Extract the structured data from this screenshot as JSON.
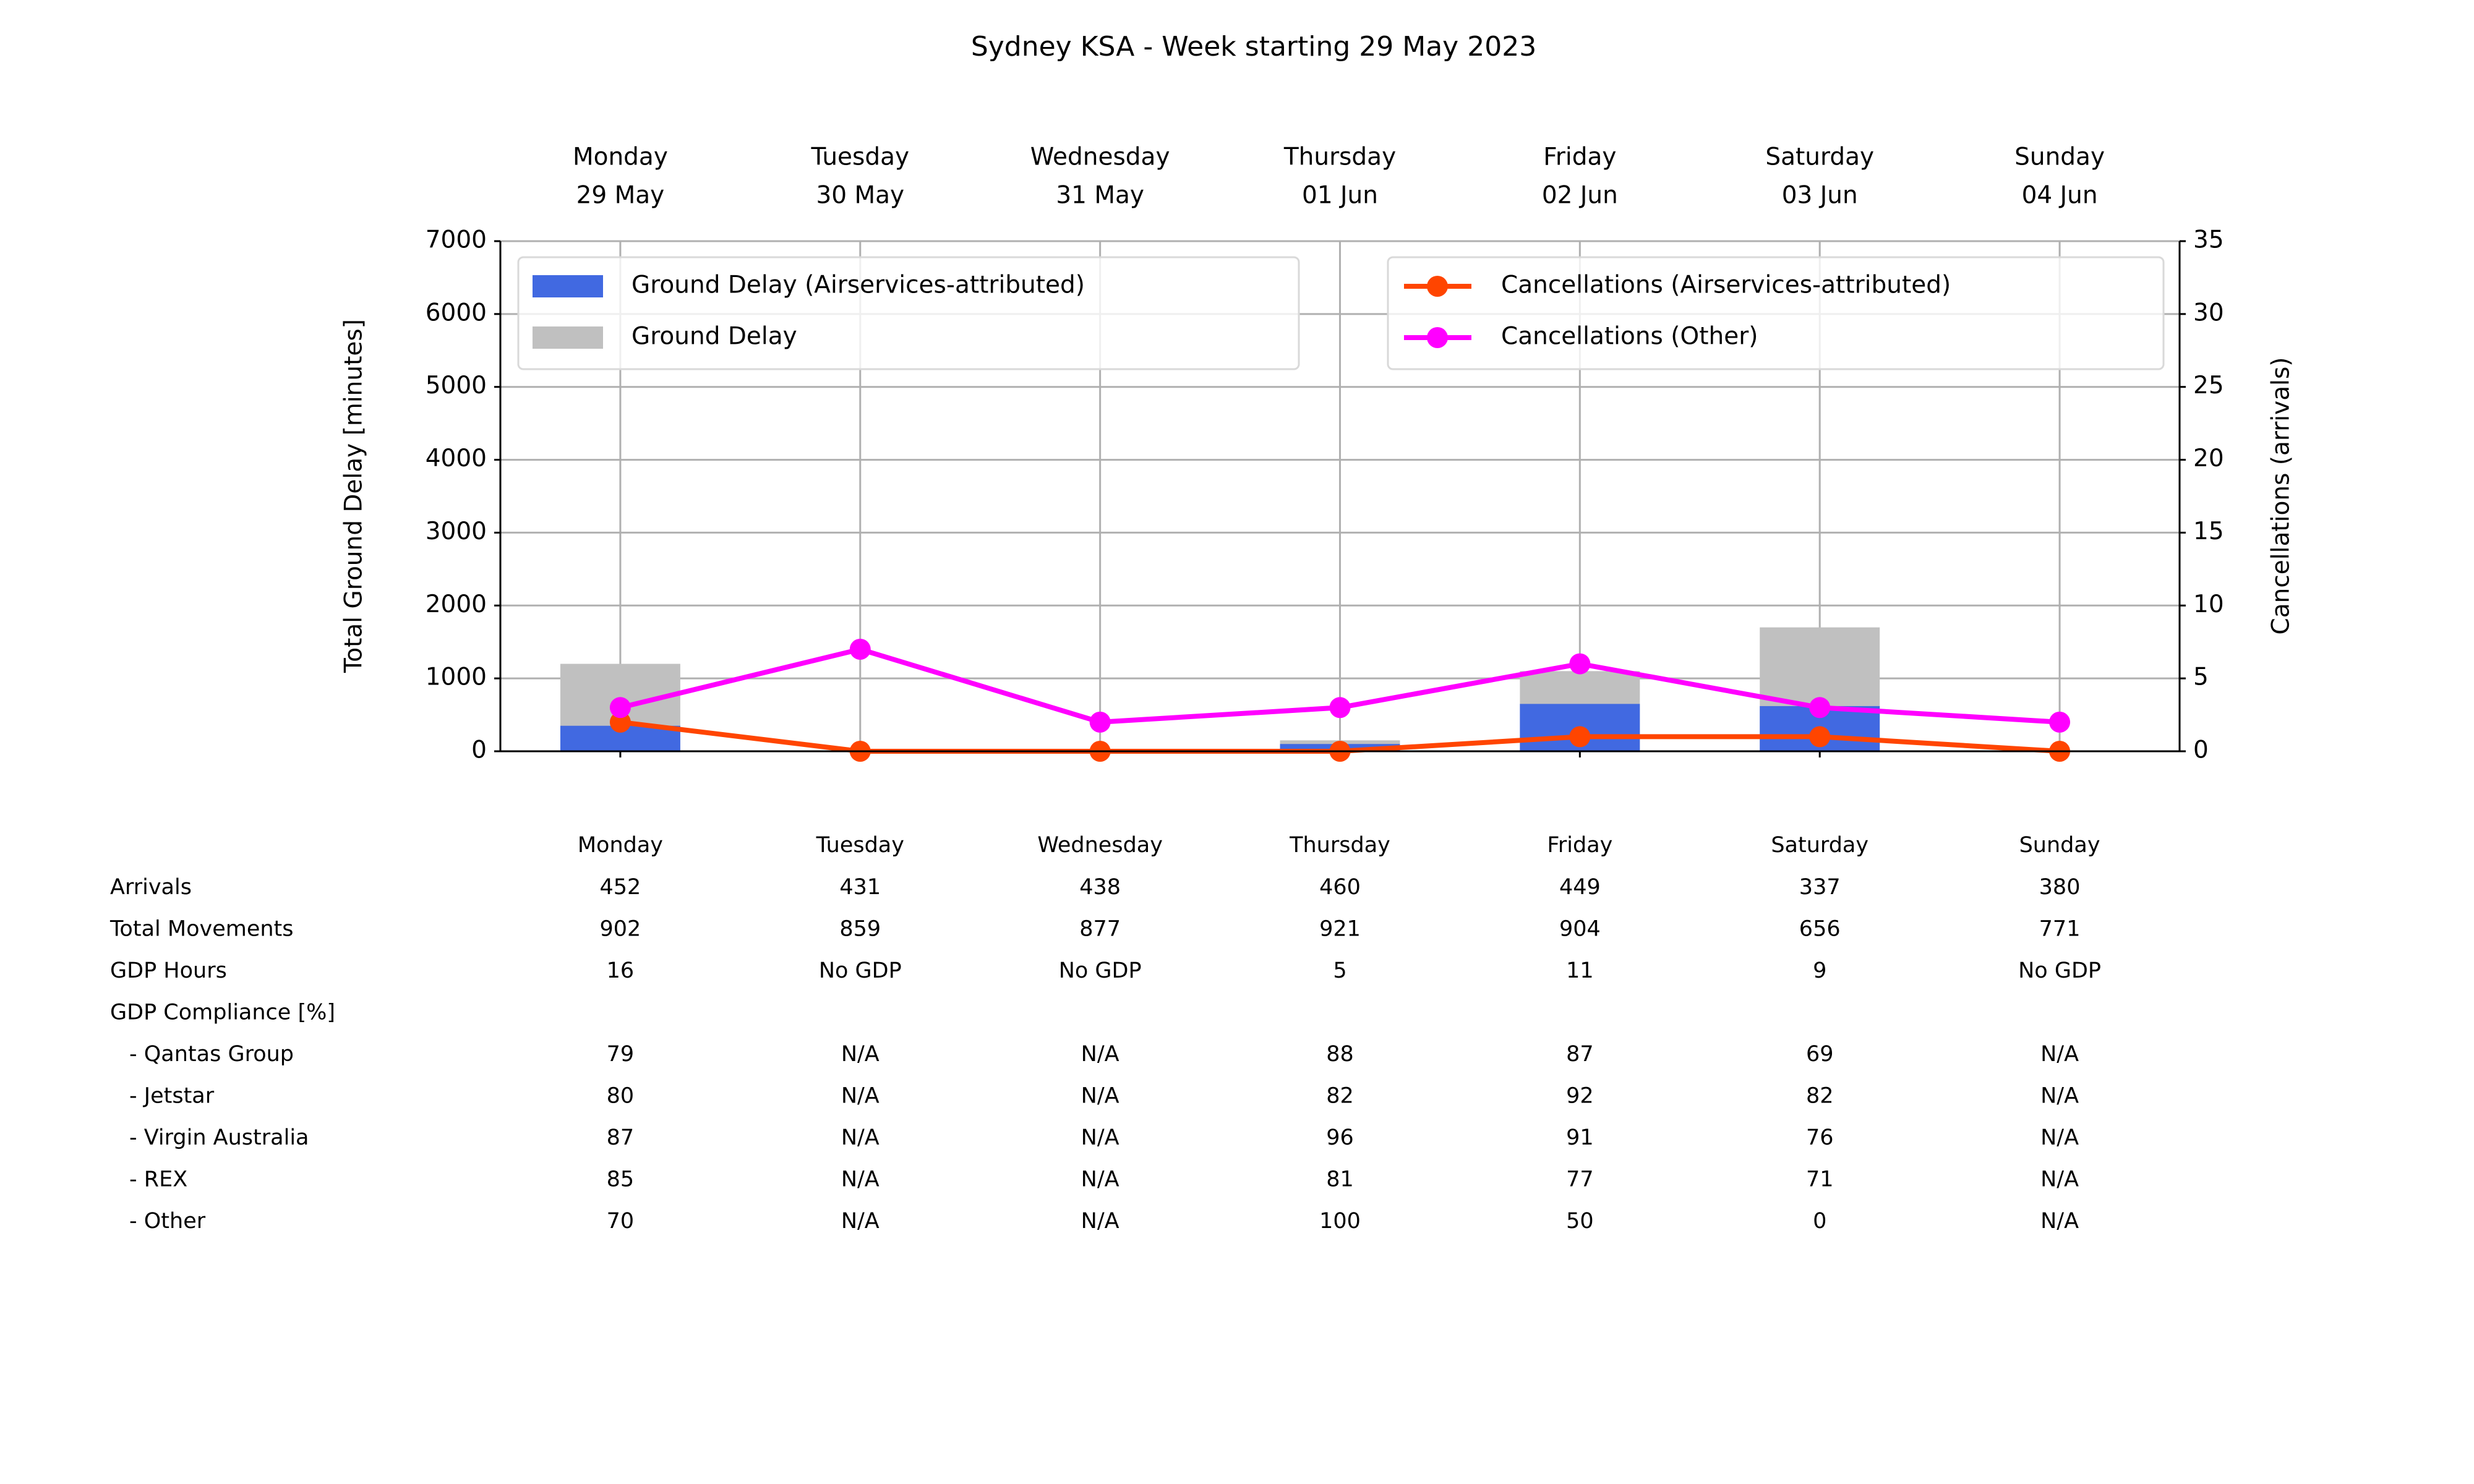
{
  "chart_data": {
    "type": "bar-line",
    "title": "Sydney KSA - Week starting 29 May 2023",
    "categories": [
      "Monday",
      "Tuesday",
      "Wednesday",
      "Thursday",
      "Friday",
      "Saturday",
      "Sunday"
    ],
    "dates": [
      "29 May",
      "30 May",
      "31 May",
      "01 Jun",
      "02 Jun",
      "03 Jun",
      "04 Jun"
    ],
    "ylabel": "Total Ground Delay [minutes]",
    "y2label": "Cancellations (arrivals)",
    "ylim": [
      0,
      7000
    ],
    "yticks": [
      0,
      1000,
      2000,
      3000,
      4000,
      5000,
      6000,
      7000
    ],
    "y2lim": [
      0,
      35
    ],
    "y2ticks": [
      0,
      5,
      10,
      15,
      20,
      25,
      30,
      35
    ],
    "grid": true,
    "bar_legend": "upper left",
    "line_legend": "upper right",
    "series": [
      {
        "name": "Ground Delay (Airservices-attributed)",
        "type": "bar",
        "color": "#4169e1",
        "values": [
          350,
          0,
          0,
          100,
          650,
          620,
          0
        ]
      },
      {
        "name": "Ground Delay",
        "type": "bar",
        "color": "#c0c0c0",
        "values": [
          1200,
          0,
          0,
          150,
          1100,
          1700,
          0
        ]
      },
      {
        "name": "Cancellations (Airservices-attributed)",
        "type": "line",
        "axis": "y2",
        "color": "#ff4500",
        "values": [
          2,
          0,
          0,
          0,
          1,
          1,
          0
        ]
      },
      {
        "name": "Cancellations (Other)",
        "type": "line",
        "axis": "y2",
        "color": "#ff00ff",
        "values": [
          3,
          7,
          2,
          3,
          6,
          3,
          2
        ]
      }
    ],
    "table": {
      "rows": [
        {
          "label": "Arrivals",
          "values": [
            452,
            431,
            438,
            460,
            449,
            337,
            380
          ]
        },
        {
          "label": "Total Movements",
          "values": [
            902,
            859,
            877,
            921,
            904,
            656,
            771
          ]
        },
        {
          "label": "GDP Hours",
          "values": [
            16,
            "No GDP",
            "No GDP",
            5,
            11,
            9,
            "No GDP"
          ]
        },
        {
          "label": "GDP Compliance [%]"
        },
        {
          "label": "- Qantas Group",
          "indent": true,
          "values": [
            79,
            "N/A",
            "N/A",
            88,
            87,
            69,
            "N/A"
          ]
        },
        {
          "label": "- Jetstar",
          "indent": true,
          "values": [
            80,
            "N/A",
            "N/A",
            82,
            92,
            82,
            "N/A"
          ]
        },
        {
          "label": "- Virgin Australia",
          "indent": true,
          "values": [
            87,
            "N/A",
            "N/A",
            96,
            91,
            76,
            "N/A"
          ]
        },
        {
          "label": "- REX",
          "indent": true,
          "values": [
            85,
            "N/A",
            "N/A",
            81,
            77,
            71,
            "N/A"
          ]
        },
        {
          "label": "- Other",
          "indent": true,
          "values": [
            70,
            "N/A",
            "N/A",
            100,
            50,
            0,
            "N/A"
          ]
        }
      ]
    }
  }
}
